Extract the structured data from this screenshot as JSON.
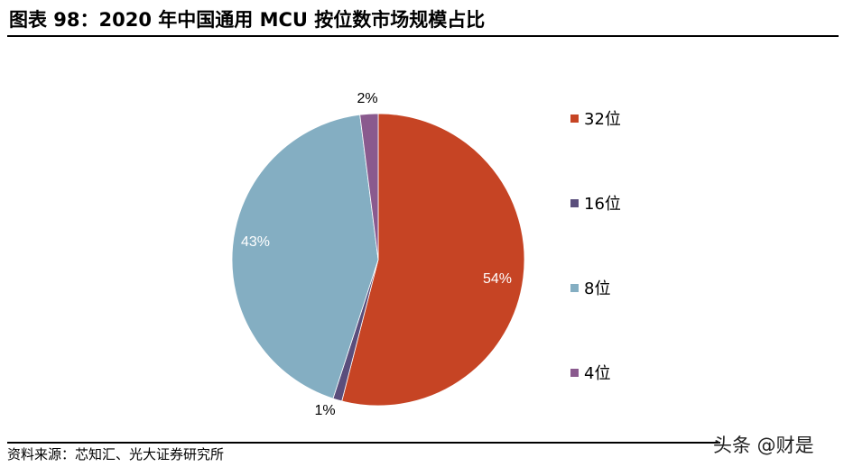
{
  "header": {
    "title": "图表 98：2020 年中国通用 MCU 按位数市场规模占比"
  },
  "footer": {
    "source": "资料来源：芯知汇、光大证券研究所",
    "watermark": "头条 @财是"
  },
  "chart_data": {
    "type": "pie",
    "title": "2020 年中国通用 MCU 按位数市场规模占比",
    "categories": [
      "32位",
      "16位",
      "8位",
      "4位"
    ],
    "values": [
      54,
      1,
      43,
      2
    ],
    "labels": [
      "54%",
      "1%",
      "43%",
      "2%"
    ],
    "colors": [
      "#C64424",
      "#5A4E7C",
      "#84AEC2",
      "#8A5A8E"
    ],
    "start_angle_deg": 0,
    "direction": "clockwise",
    "legend_position": "right",
    "legend": [
      {
        "label": "32位",
        "color": "#C64424"
      },
      {
        "label": "16位",
        "color": "#5A4E7C"
      },
      {
        "label": "8位",
        "color": "#84AEC2"
      },
      {
        "label": "4位",
        "color": "#8A5A8E"
      }
    ]
  }
}
